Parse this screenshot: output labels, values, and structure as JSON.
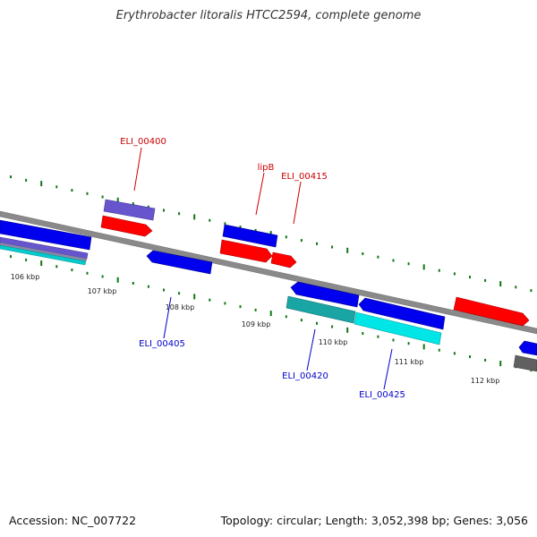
{
  "title": "Erythrobacter litoralis HTCC2594, complete genome",
  "accession": "Accession: NC_007722",
  "summary": "Topology: circular; Length: 3,052,398 bp; Genes: 3,056",
  "kbp_labels": [
    "106 kbp",
    "107 kbp",
    "108 kbp",
    "109 kbp",
    "110 kbp",
    "111 kbp",
    "112 kbp"
  ],
  "gene_labels_top": [
    "ELI_00400",
    "lipB",
    "ELI_00415"
  ],
  "gene_labels_bottom": [
    "ELI_00405",
    "ELI_00420",
    "ELI_00425"
  ],
  "colors": {
    "forward": "#ff0000",
    "reverse": "#0000ee",
    "cyan": "#00e5e5",
    "teal": "#1aa5a5",
    "purple": "#6655cc",
    "backbone": "#808080",
    "tick": "#117711",
    "label_top": "#cc0000",
    "label_bottom": "#0000cc"
  }
}
